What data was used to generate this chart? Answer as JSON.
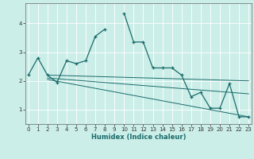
{
  "title": "",
  "xlabel": "Humidex (Indice chaleur)",
  "background_color": "#cceee8",
  "grid_color": "#ffffff",
  "line_color": "#1a6b6b",
  "x_values": [
    0,
    1,
    2,
    3,
    4,
    5,
    6,
    7,
    8,
    9,
    10,
    11,
    12,
    13,
    14,
    15,
    16,
    17,
    18,
    19,
    20,
    21,
    22,
    23
  ],
  "y_main": [
    2.2,
    2.8,
    2.2,
    1.95,
    2.7,
    2.6,
    2.7,
    3.55,
    3.8,
    null,
    4.35,
    3.35,
    3.35,
    2.45,
    2.45,
    2.45,
    2.2,
    1.45,
    1.6,
    1.05,
    1.05,
    1.9,
    0.75,
    0.75
  ],
  "y_line1_x": [
    2,
    23
  ],
  "y_line1_y": [
    2.2,
    2.0
  ],
  "y_line2_x": [
    2,
    23
  ],
  "y_line2_y": [
    2.1,
    1.55
  ],
  "y_line3_x": [
    2,
    23
  ],
  "y_line3_y": [
    2.05,
    0.75
  ],
  "ylim": [
    0.5,
    4.7
  ],
  "xlim": [
    -0.3,
    23.3
  ],
  "yticks": [
    1,
    2,
    3,
    4
  ],
  "xticks": [
    0,
    1,
    2,
    3,
    4,
    5,
    6,
    7,
    8,
    9,
    10,
    11,
    12,
    13,
    14,
    15,
    16,
    17,
    18,
    19,
    20,
    21,
    22,
    23
  ]
}
